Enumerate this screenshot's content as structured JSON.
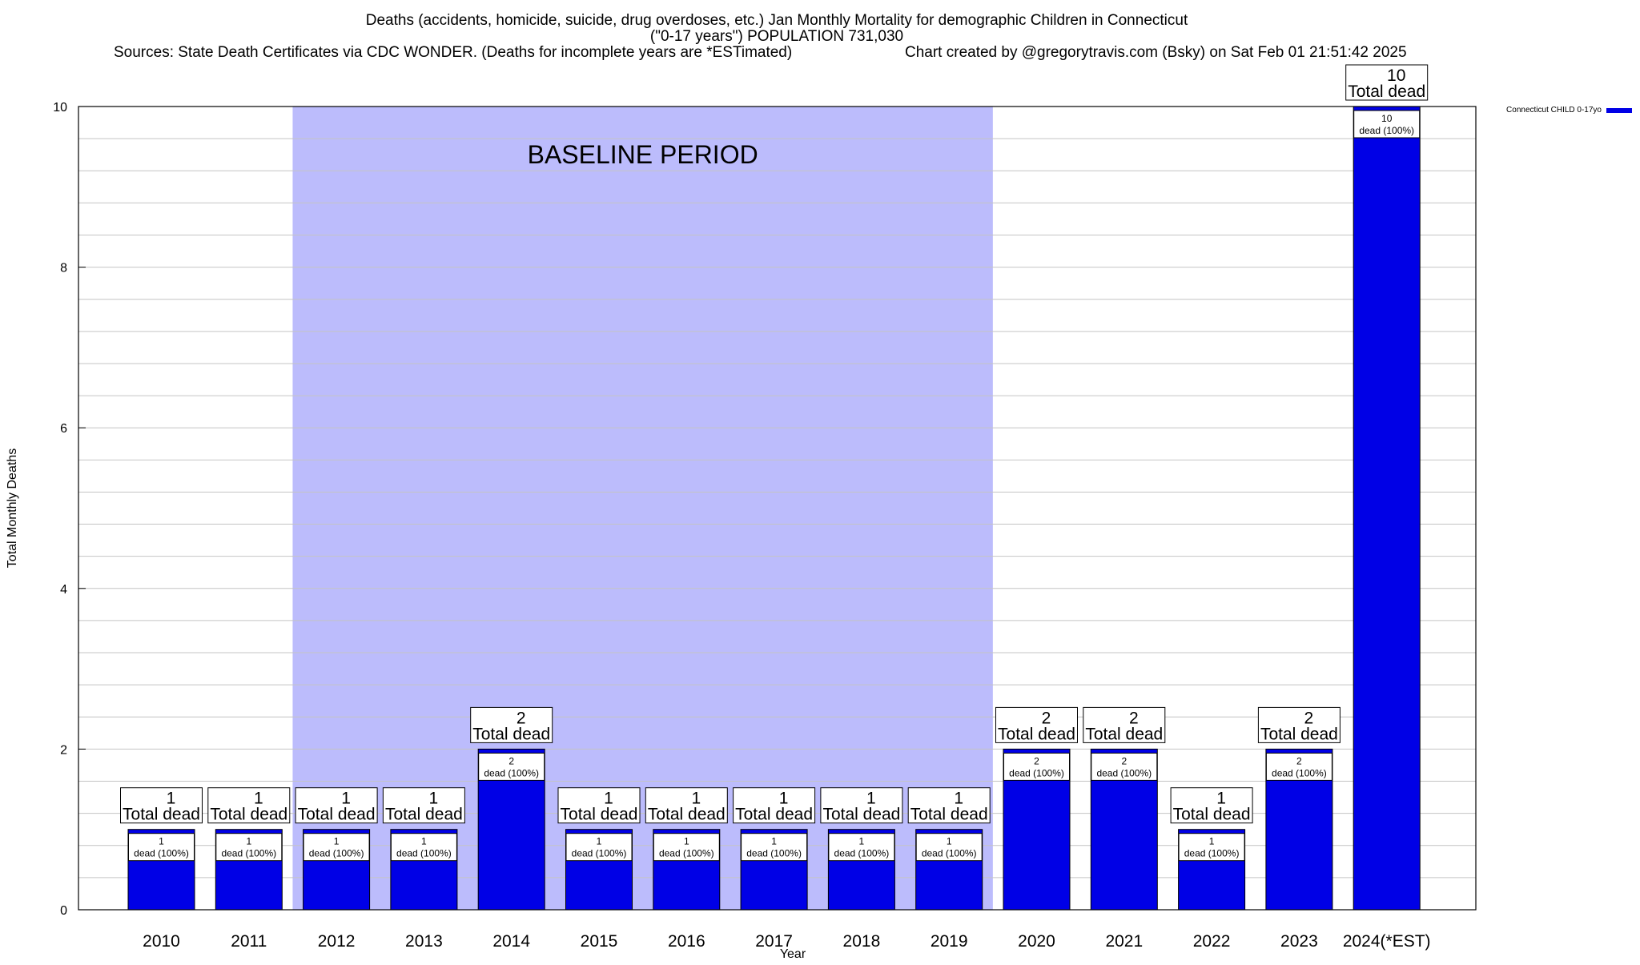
{
  "header": {
    "title_line1": "Deaths (accidents, homicide, suicide, drug overdoses, etc.) Jan Monthly Mortality for demographic Children in Connecticut",
    "title_line2": "(\"0-17 years\") POPULATION 731,030",
    "sources": "Sources: State Death Certificates via CDC WONDER. (Deaths for incomplete years are *ESTimated)",
    "credit": "Chart created by @gregorytravis.com (Bsky) on Sat Feb 01 21:51:42 2025"
  },
  "chart_data": {
    "type": "bar",
    "xlabel": "Year",
    "ylabel": "Total Monthly Deaths",
    "ylim": [
      0,
      10
    ],
    "yticks": [
      0,
      2,
      4,
      6,
      8,
      10
    ],
    "grid": "horizontal",
    "legend_position": "top-right",
    "categories": [
      "2010",
      "2011",
      "2012",
      "2013",
      "2014",
      "2015",
      "2016",
      "2017",
      "2018",
      "2019",
      "2020",
      "2021",
      "2022",
      "2023",
      "2024(*EST)"
    ],
    "series": [
      {
        "name": "Connecticut CHILD 0-17yo",
        "color": "#0000e6",
        "values": [
          1,
          1,
          1,
          1,
          2,
          1,
          1,
          1,
          1,
          1,
          2,
          2,
          1,
          2,
          10
        ]
      }
    ],
    "total_label": "Total dead",
    "segment_label": "dead (100%)",
    "baseline": {
      "label": "BASELINE PERIOD",
      "from": "2012",
      "to": "2019",
      "color": "#bcbcfc"
    }
  }
}
